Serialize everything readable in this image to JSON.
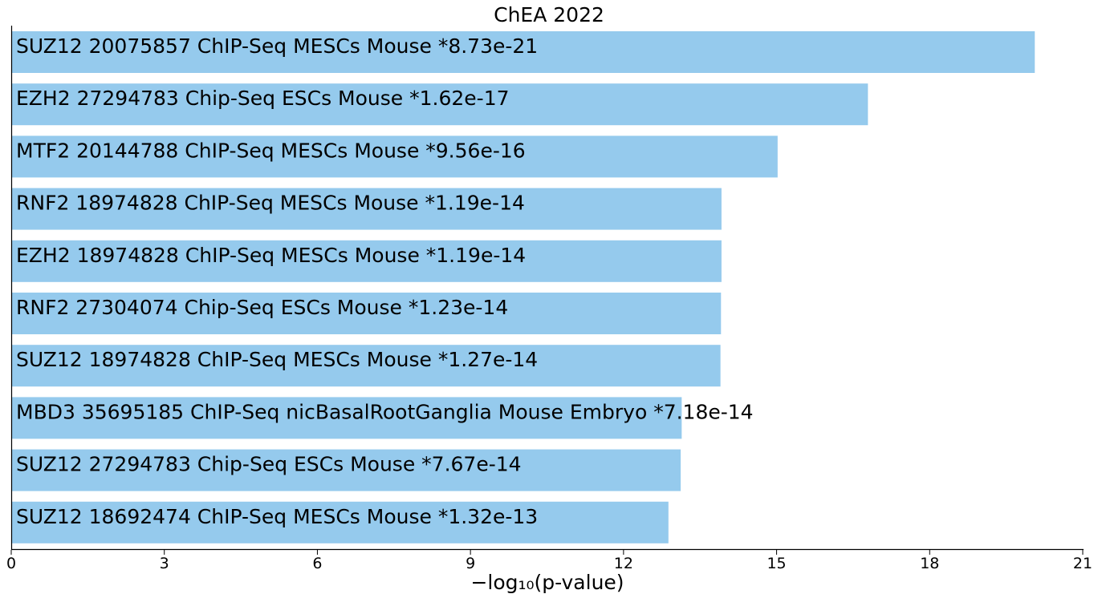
{
  "chart_data": {
    "type": "bar",
    "orientation": "horizontal",
    "title": "ChEA 2022",
    "xlabel": "−log₁₀(p-value)",
    "ylabel": "",
    "xlim": [
      0,
      21
    ],
    "xticks": [
      0,
      3,
      6,
      9,
      12,
      15,
      18,
      21
    ],
    "grid": false,
    "bar_color": "#95caed",
    "categories": [
      "SUZ12 20075857 ChIP-Seq MESCs Mouse",
      "EZH2 27294783 Chip-Seq ESCs Mouse",
      "MTF2 20144788 ChIP-Seq MESCs Mouse",
      "RNF2 18974828 ChIP-Seq MESCs Mouse",
      "EZH2 18974828 ChIP-Seq MESCs Mouse",
      "RNF2 27304074 Chip-Seq ESCs Mouse",
      "SUZ12 18974828 ChIP-Seq MESCs Mouse",
      "MBD3 35695185 ChIP-Seq nicBasalRootGanglia Mouse Embryo",
      "SUZ12 27294783 Chip-Seq ESCs Mouse",
      "SUZ12 18692474 ChIP-Seq MESCs Mouse"
    ],
    "p_values": [
      "*8.73e-21",
      "*1.62e-17",
      "*9.56e-16",
      "*1.19e-14",
      "*1.19e-14",
      "*1.23e-14",
      "*1.27e-14",
      "*7.18e-14",
      "*7.67e-14",
      "*1.32e-13"
    ],
    "values": [
      20.06,
      16.79,
      15.02,
      13.92,
      13.92,
      13.91,
      13.9,
      13.14,
      13.12,
      12.88
    ]
  }
}
